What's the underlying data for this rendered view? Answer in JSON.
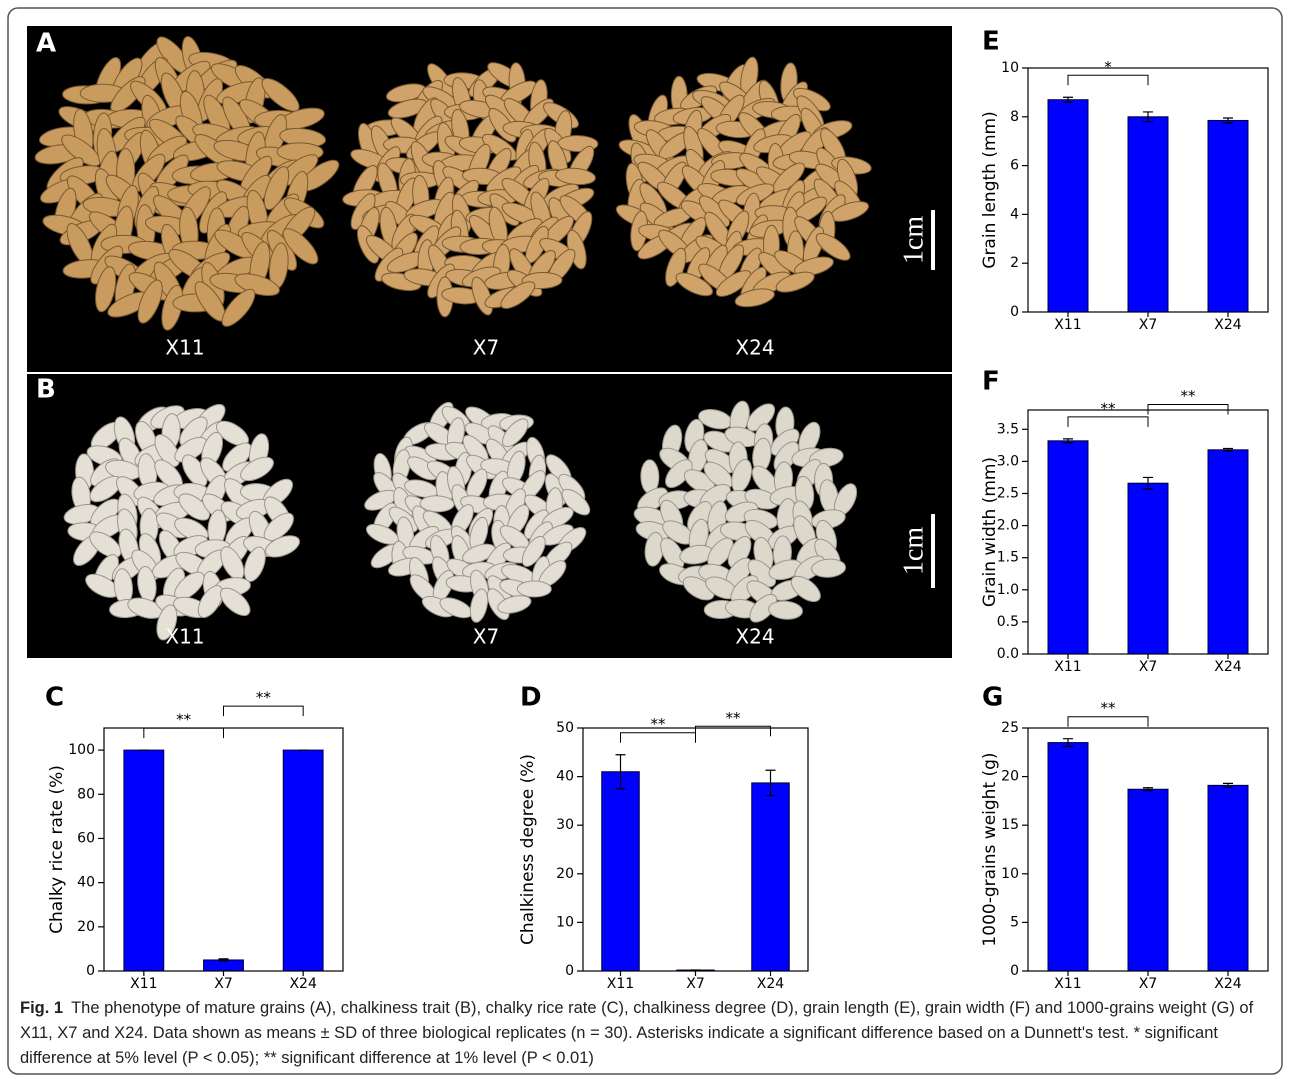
{
  "panels": {
    "A": {
      "letter": "A",
      "labels": [
        "X11",
        "X7",
        "X24"
      ],
      "scale": "1cm"
    },
    "B": {
      "letter": "B",
      "labels": [
        "X11",
        "X7",
        "X24"
      ],
      "scale": "1cm"
    }
  },
  "chart_data": [
    {
      "type": "bar",
      "letter": "C",
      "ylabel": "Chalky rice rate (%)",
      "categories": [
        "X11",
        "X7",
        "X24"
      ],
      "values": [
        100,
        5,
        100
      ],
      "errors": [
        0,
        0.5,
        0
      ],
      "ylim": [
        0,
        110
      ],
      "yticks": [
        0,
        20,
        40,
        60,
        80,
        100
      ],
      "color": "#0000ff",
      "significance": [
        {
          "between": [
            0,
            1
          ],
          "label": "**"
        },
        {
          "between": [
            1,
            2
          ],
          "label": "**"
        }
      ]
    },
    {
      "type": "bar",
      "letter": "D",
      "ylabel": "Chalkiness degree (%)",
      "categories": [
        "X11",
        "X7",
        "X24"
      ],
      "values": [
        41,
        0.2,
        38.7
      ],
      "errors": [
        3.5,
        0,
        2.6
      ],
      "ylim": [
        0,
        50
      ],
      "yticks": [
        0,
        10,
        20,
        30,
        40,
        50
      ],
      "color": "#0000ff",
      "significance": [
        {
          "between": [
            0,
            1
          ],
          "label": "**"
        },
        {
          "between": [
            1,
            2
          ],
          "label": "**"
        }
      ]
    },
    {
      "type": "bar",
      "letter": "E",
      "ylabel": "Grain length (mm)",
      "categories": [
        "X11",
        "X7",
        "X24"
      ],
      "values": [
        8.7,
        8.0,
        7.85
      ],
      "errors": [
        0.1,
        0.2,
        0.1
      ],
      "ylim": [
        0,
        10
      ],
      "yticks": [
        0,
        2,
        4,
        6,
        8,
        10
      ],
      "color": "#0000ff",
      "significance": [
        {
          "between": [
            0,
            1
          ],
          "label": "*"
        }
      ]
    },
    {
      "type": "bar",
      "letter": "F",
      "ylabel": "Grain width (mm)",
      "categories": [
        "X11",
        "X7",
        "X24"
      ],
      "values": [
        3.32,
        2.66,
        3.18
      ],
      "errors": [
        0.03,
        0.09,
        0.02
      ],
      "ylim": [
        0,
        3.8
      ],
      "yticks": [
        {
          "value": 0,
          "label": "0.0"
        },
        0.5,
        {
          "value": 1,
          "label": "1.0"
        },
        1.5,
        {
          "value": 2,
          "label": "2.0"
        },
        2.5,
        {
          "value": 3,
          "label": "3.0"
        },
        3.5
      ],
      "color": "#0000ff",
      "significance": [
        {
          "between": [
            0,
            1
          ],
          "label": "**"
        },
        {
          "between": [
            1,
            2
          ],
          "label": "**"
        }
      ]
    },
    {
      "type": "bar",
      "letter": "G",
      "ylabel": "1000-grains weight (g)",
      "categories": [
        "X11",
        "X7",
        "X24"
      ],
      "values": [
        23.5,
        18.7,
        19.1
      ],
      "errors": [
        0.4,
        0.15,
        0.2
      ],
      "ylim": [
        0,
        25
      ],
      "yticks": [
        0,
        5,
        10,
        15,
        20,
        25
      ],
      "color": "#0000ff",
      "significance": [
        {
          "between": [
            0,
            1
          ],
          "label": "**"
        }
      ]
    }
  ],
  "caption": {
    "label": "Fig. 1",
    "text": "The phenotype of mature grains (A), chalkiness trait (B), chalky rice rate (C), chalkiness degree (D), grain length (E), grain width (F) and 1000-grains weight (G) of X11, X7 and X24. Data shown as means ± SD of three biological replicates (n = 30). Asterisks indicate a significant difference based on a Dunnett's test. * significant difference at 5% level (P < 0.05); ** significant difference at 1% level (P < 0.01)"
  }
}
